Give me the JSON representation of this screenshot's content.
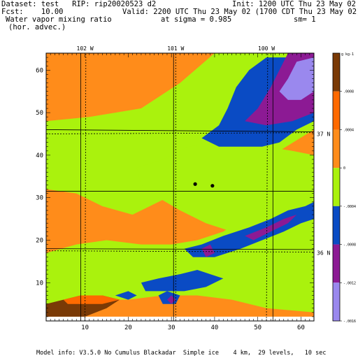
{
  "header": {
    "dataset": "Dataset: test   RIP: rip20020523 d2",
    "init": "Init: 1200 UTC Thu 23 May 02",
    "fcst": "Fcst:    10.00",
    "valid": "Valid: 2200 UTC Thu 23 May 02 (1700 CDT Thu 23 May 02)",
    "field": "Water vapor mixing ratio",
    "sigma": "at sigma = 0.985",
    "sm": "sm= 1",
    "advec": "(hor. advec.)"
  },
  "footer": "Model info: V3.5.0 No Cumulus Blackadar  Simple ice    4 km,  29 levels,   10 sec",
  "chart_data": {
    "type": "heatmap",
    "title": "Water vapor mixing ratio (hor. advec.)",
    "xlim": [
      1,
      63
    ],
    "ylim": [
      1,
      64
    ],
    "x_ticks": [
      10,
      20,
      30,
      40,
      50,
      60
    ],
    "y_ticks": [
      10,
      20,
      30,
      40,
      50,
      60
    ],
    "longitude_labels": [
      {
        "text": "102 W",
        "x": 10
      },
      {
        "text": "101 W",
        "x": 31
      },
      {
        "text": "100 W",
        "x": 52
      }
    ],
    "latitude_labels": [
      {
        "text": "37 N",
        "y": 45
      },
      {
        "text": "36 N",
        "y": 17
      }
    ],
    "colorbar": {
      "unit_label": "g kg-1",
      "tick_labels": [
        ".0008",
        ".0004",
        "0",
        "-.0004",
        "-.0008",
        "-.0012",
        "-.0016"
      ],
      "levels": [
        {
          "min": 0.0008,
          "max": 0.0012,
          "color": "#7a3a06"
        },
        {
          "min": 0.0004,
          "max": 0.0008,
          "color": "#ff6a00"
        },
        {
          "min": 0.0,
          "max": 0.0004,
          "color": "#ff8c1a"
        },
        {
          "min": -0.0004,
          "max": 0.0,
          "color": "#aaf20d"
        },
        {
          "min": -0.0008,
          "max": -0.0004,
          "color": "#0a4bc4"
        },
        {
          "min": -0.0012,
          "max": -0.0008,
          "color": "#8c1a94"
        },
        {
          "min": -0.0016,
          "max": -0.0012,
          "color": "#9a88ee"
        }
      ]
    },
    "regions": [
      {
        "level": "0 to .0004",
        "color": "#ff8c1a",
        "points": [
          [
            1,
            2
          ],
          [
            1,
            64
          ],
          [
            63,
            64
          ],
          [
            63,
            2
          ]
        ]
      },
      {
        "level": "-.0004 to 0",
        "color": "#aaf20d",
        "points": [
          [
            1,
            48
          ],
          [
            11,
            49
          ],
          [
            23,
            51
          ],
          [
            32,
            57
          ],
          [
            40,
            64
          ],
          [
            63,
            64
          ],
          [
            63,
            46
          ],
          [
            55,
            41
          ],
          [
            47,
            39
          ],
          [
            39,
            35
          ],
          [
            31,
            31
          ],
          [
            25,
            28
          ],
          [
            21,
            26
          ],
          [
            14,
            28
          ],
          [
            8,
            31
          ],
          [
            1,
            32
          ]
        ]
      },
      {
        "level": "-.0004 to 0",
        "color": "#aaf20d",
        "points": [
          [
            1,
            17
          ],
          [
            8,
            19
          ],
          [
            15,
            20
          ],
          [
            23,
            19
          ],
          [
            30,
            19
          ],
          [
            36,
            20
          ],
          [
            42,
            22
          ],
          [
            48,
            26
          ],
          [
            55,
            29
          ],
          [
            63,
            31
          ],
          [
            63,
            3
          ],
          [
            52,
            4
          ],
          [
            44,
            6
          ],
          [
            36,
            7
          ],
          [
            28,
            7
          ],
          [
            20,
            6
          ],
          [
            12,
            6
          ],
          [
            5,
            4
          ],
          [
            1,
            4
          ]
        ]
      },
      {
        "level": "-.0004 to 0",
        "color": "#aaf20d",
        "points": [
          [
            22,
            37
          ],
          [
            28,
            39
          ],
          [
            34,
            42
          ],
          [
            40,
            43
          ],
          [
            46,
            43
          ],
          [
            52,
            42
          ],
          [
            58,
            41
          ],
          [
            63,
            40
          ],
          [
            63,
            26
          ],
          [
            56,
            24
          ],
          [
            50,
            22
          ],
          [
            44,
            22
          ],
          [
            38,
            24
          ],
          [
            32,
            27
          ],
          [
            27,
            30
          ],
          [
            23,
            33
          ]
        ]
      },
      {
        "level": "-.0008 to -.0004",
        "color": "#0a4bc4",
        "points": [
          [
            37,
            44
          ],
          [
            41,
            47
          ],
          [
            43,
            51
          ],
          [
            45,
            56
          ],
          [
            48,
            60
          ],
          [
            52,
            63
          ],
          [
            63,
            63
          ],
          [
            63,
            48
          ],
          [
            59,
            46
          ],
          [
            55,
            43
          ],
          [
            51,
            42
          ],
          [
            46,
            42
          ],
          [
            41,
            42
          ]
        ]
      },
      {
        "level": "-.0008 to -.0004",
        "color": "#0a4bc4",
        "points": [
          [
            33,
            18
          ],
          [
            37,
            19
          ],
          [
            42,
            21
          ],
          [
            48,
            23
          ],
          [
            53,
            25
          ],
          [
            57,
            27
          ],
          [
            61,
            28
          ],
          [
            63,
            29
          ],
          [
            63,
            25
          ],
          [
            60,
            24
          ],
          [
            56,
            22
          ],
          [
            51,
            20
          ],
          [
            46,
            18
          ],
          [
            40,
            16
          ],
          [
            35,
            16
          ]
        ]
      },
      {
        "level": "-.0008 to -.0004",
        "color": "#0a4bc4",
        "points": [
          [
            23,
            10
          ],
          [
            27,
            11
          ],
          [
            32,
            12
          ],
          [
            36,
            13
          ],
          [
            39,
            12
          ],
          [
            42,
            11
          ],
          [
            38,
            9
          ],
          [
            33,
            8
          ],
          [
            28,
            8
          ],
          [
            24,
            8
          ]
        ]
      },
      {
        "level": "-.0008 to -.0004",
        "color": "#0a4bc4",
        "points": [
          [
            27,
            7
          ],
          [
            29,
            8
          ],
          [
            32,
            7
          ],
          [
            31,
            5
          ],
          [
            28,
            5
          ]
        ]
      },
      {
        "level": "-.0008 to -.0004",
        "color": "#0a4bc4",
        "points": [
          [
            17,
            7
          ],
          [
            20,
            8
          ],
          [
            22,
            7
          ],
          [
            20,
            6
          ]
        ]
      },
      {
        "level": "-.0012 to -.0008",
        "color": "#8c1a94",
        "points": [
          [
            47,
            48
          ],
          [
            50,
            51
          ],
          [
            53,
            56
          ],
          [
            55,
            60
          ],
          [
            57,
            64
          ],
          [
            63,
            64
          ],
          [
            63,
            50
          ],
          [
            58,
            48
          ],
          [
            52,
            47
          ]
        ]
      },
      {
        "level": "-.0012 to -.0008",
        "color": "#8c1a94",
        "points": [
          [
            47,
            21
          ],
          [
            52,
            23
          ],
          [
            56,
            25
          ],
          [
            59,
            26
          ],
          [
            57,
            24
          ],
          [
            53,
            22
          ],
          [
            49,
            20
          ]
        ]
      },
      {
        "level": "-.0012 to -.0008",
        "color": "#8c1a94",
        "points": [
          [
            37,
            18
          ],
          [
            39,
            19
          ],
          [
            40,
            17
          ],
          [
            38,
            16
          ]
        ]
      },
      {
        "level": "-.0012 to -.0008",
        "color": "#8c1a94",
        "points": [
          [
            29,
            6
          ],
          [
            30,
            7
          ],
          [
            31,
            6
          ],
          [
            30,
            5
          ]
        ]
      },
      {
        "level": "-.0016 to -.0012",
        "color": "#9a88ee",
        "points": [
          [
            55,
            55
          ],
          [
            57,
            58
          ],
          [
            59,
            62
          ],
          [
            63,
            63
          ],
          [
            63,
            55
          ],
          [
            60,
            53
          ],
          [
            57,
            53
          ]
        ]
      },
      {
        "level": ".0008 to .0012",
        "color": "#7a3a06",
        "points": [
          [
            1,
            2
          ],
          [
            1,
            5
          ],
          [
            5,
            6
          ],
          [
            9,
            7
          ],
          [
            14,
            7
          ],
          [
            18,
            6
          ],
          [
            15,
            4
          ],
          [
            10,
            2
          ],
          [
            5,
            2
          ]
        ]
      },
      {
        "level": ".0004 to .0008",
        "color": "#ff6a00",
        "points": [
          [
            5,
            6
          ],
          [
            9,
            7
          ],
          [
            14,
            7
          ],
          [
            18,
            6
          ],
          [
            14,
            5
          ],
          [
            10,
            5
          ],
          [
            6,
            5
          ]
        ]
      }
    ],
    "markers": [
      {
        "x": 35.5,
        "y": 33.2
      },
      {
        "x": 39.5,
        "y": 32.8
      }
    ]
  }
}
